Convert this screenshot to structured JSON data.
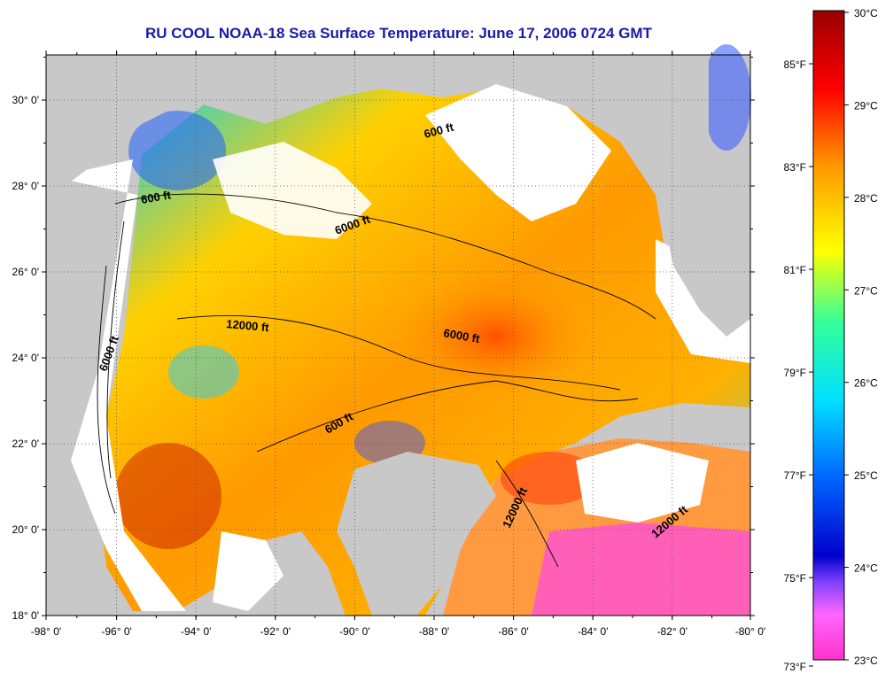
{
  "title": "RU COOL  NOAA-18  Sea Surface Temperature:  June 17, 2006 0724 GMT",
  "axes": {
    "x_ticks": [
      "-98° 0'",
      "-96° 0'",
      "-94° 0'",
      "-92° 0'",
      "-90° 0'",
      "-88° 0'",
      "-86° 0'",
      "-84° 0'",
      "-82° 0'",
      "-80° 0'"
    ],
    "y_ticks": [
      "30° 0'",
      "28° 0'",
      "26° 0'",
      "24° 0'",
      "22° 0'",
      "20° 0'",
      "18° 0'"
    ]
  },
  "contour_labels": [
    "600 ft",
    "600 ft",
    "6000 ft",
    "12000 ft",
    "6000 ft",
    "6000 ft",
    "600 ft",
    "12000 ft",
    "12000 ft"
  ],
  "colorbar": {
    "celsius": [
      "30°C",
      "29°C",
      "28°C",
      "27°C",
      "26°C",
      "25°C",
      "24°C",
      "23°C"
    ],
    "fahrenheit": [
      "85°F",
      "83°F",
      "81°F",
      "79°F",
      "77°F",
      "75°F",
      "73°F"
    ]
  },
  "colors": {
    "title": "#1a1aa8",
    "land": "#c8c8c8",
    "cloud": "#ffffff",
    "scale": [
      "#ff33cc",
      "#ff66ff",
      "#0000cc",
      "#0066ff",
      "#00e0ff",
      "#33ff99",
      "#ffff00",
      "#ff9900",
      "#ff0000",
      "#990000"
    ]
  }
}
